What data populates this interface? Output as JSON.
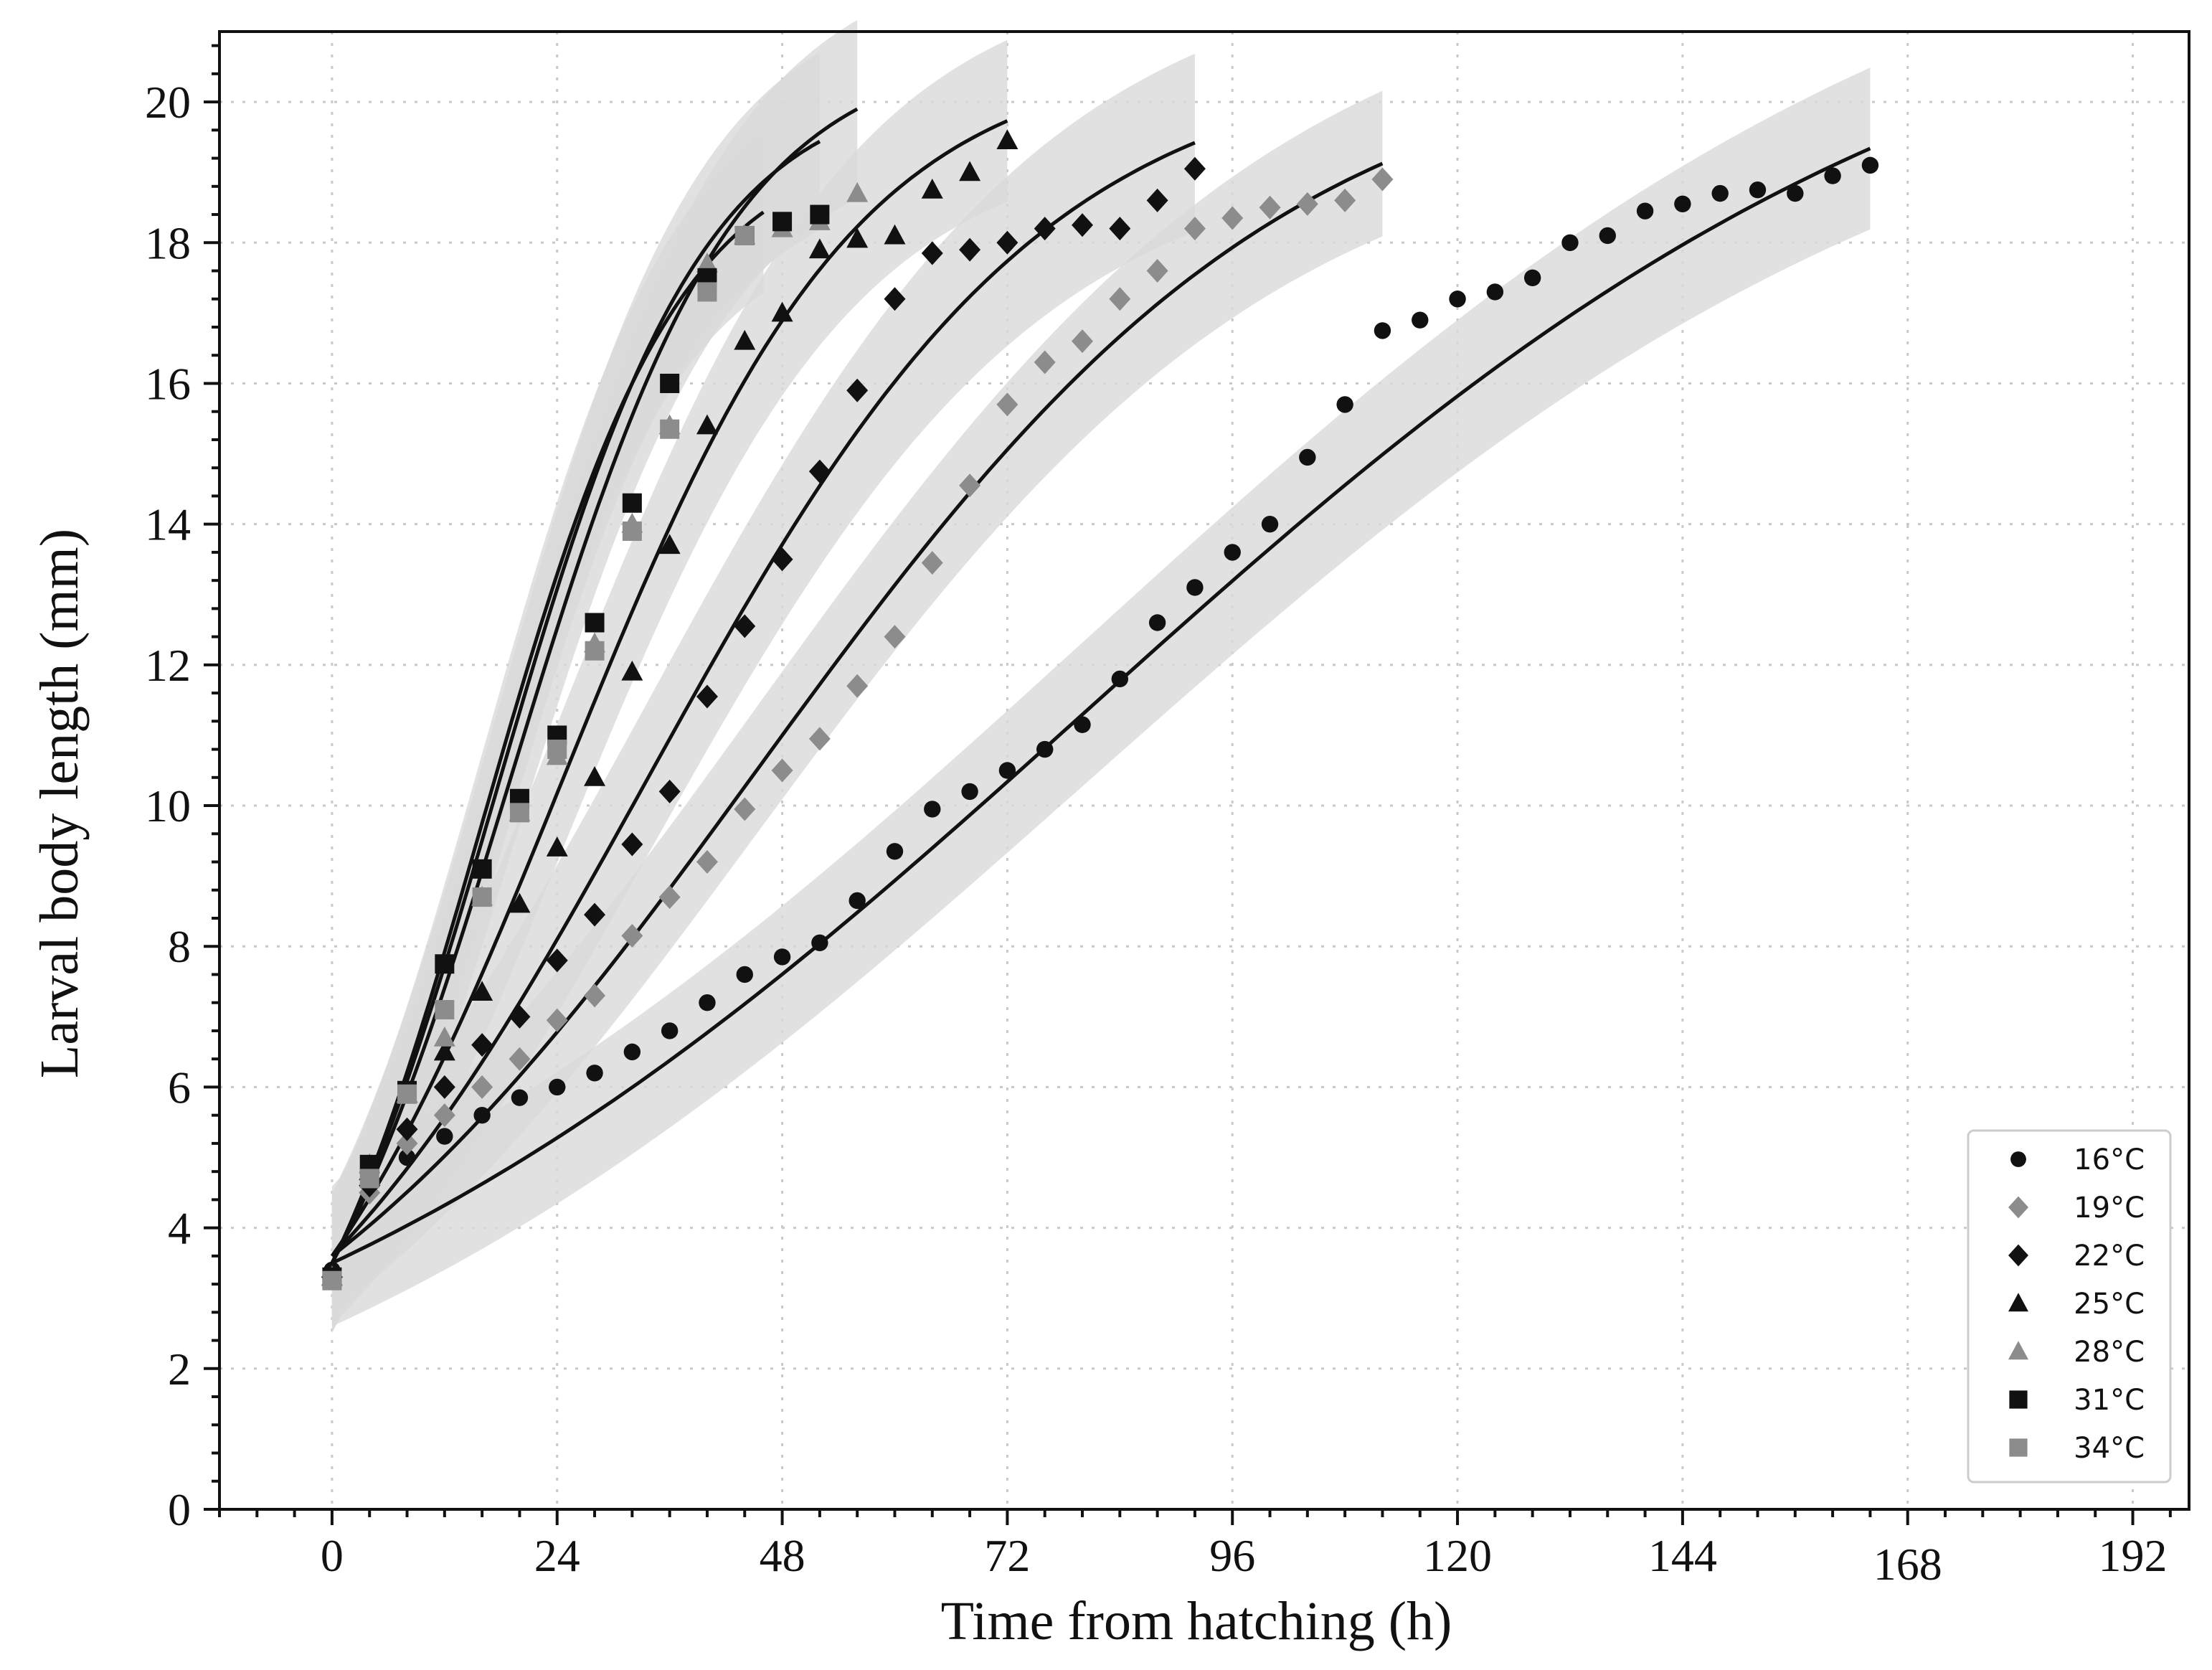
{
  "chart_data": {
    "type": "scatter",
    "title": "",
    "xlabel": "Time from hatching (h)",
    "ylabel": "Larval body length (mm)",
    "xlim": [
      -12,
      198
    ],
    "ylim": [
      0,
      21
    ],
    "x_ticks": [
      0,
      24,
      48,
      72,
      96,
      120,
      144,
      168,
      192
    ],
    "y_ticks": [
      0,
      2,
      4,
      6,
      8,
      10,
      12,
      14,
      16,
      18,
      20
    ],
    "grid": true,
    "legend_position": "bottom-right",
    "colors": {
      "black": "#111111",
      "gray": "#8c8c8c",
      "band": "#d9d9d9",
      "grid": "#c8c8c8"
    },
    "series": [
      {
        "name": "16°C",
        "marker": "circle",
        "color": "#111111",
        "x": [
          0,
          4,
          8,
          12,
          16,
          20,
          24,
          28,
          32,
          36,
          40,
          44,
          48,
          52,
          56,
          60,
          64,
          68,
          72,
          76,
          80,
          84,
          88,
          92,
          96,
          100,
          104,
          108,
          112,
          116,
          120,
          124,
          128,
          132,
          136,
          140,
          144,
          148,
          152,
          156,
          160,
          164
        ],
        "y": [
          3.4,
          4.6,
          5.0,
          5.3,
          5.6,
          5.85,
          6.0,
          6.2,
          6.5,
          6.8,
          7.2,
          7.6,
          7.85,
          8.05,
          8.65,
          9.35,
          9.95,
          10.2,
          10.5,
          10.8,
          11.15,
          11.8,
          12.6,
          13.1,
          13.6,
          14.0,
          14.95,
          15.7,
          16.75,
          16.9,
          17.2,
          17.3,
          17.5,
          18.0,
          18.1,
          18.45,
          18.55,
          18.7,
          18.75,
          18.7,
          18.95,
          19.1
        ],
        "fit": {
          "L0": 3.5,
          "Linf": 22.6,
          "r": 0.0212,
          "xmax": 164,
          "band": 1.0
        }
      },
      {
        "name": "19°C",
        "marker": "diamond",
        "color": "#8c8c8c",
        "x": [
          0,
          4,
          8,
          12,
          16,
          20,
          24,
          28,
          32,
          36,
          40,
          44,
          48,
          52,
          56,
          60,
          64,
          68,
          72,
          76,
          80,
          84,
          88,
          92,
          96,
          100,
          104,
          108,
          112
        ],
        "y": [
          3.3,
          4.5,
          5.2,
          5.6,
          6.0,
          6.4,
          6.95,
          7.3,
          8.15,
          8.7,
          9.2,
          9.95,
          10.5,
          10.95,
          11.7,
          12.4,
          13.45,
          14.55,
          15.7,
          16.3,
          16.6,
          17.2,
          17.6,
          18.2,
          18.35,
          18.5,
          18.55,
          18.6,
          18.9
        ],
        "fit": {
          "L0": 3.6,
          "Linf": 21.0,
          "r": 0.0348,
          "xmax": 112,
          "band": 0.9
        }
      },
      {
        "name": "22°C",
        "marker": "diamond",
        "color": "#111111",
        "x": [
          0,
          4,
          8,
          12,
          16,
          20,
          24,
          28,
          32,
          36,
          40,
          44,
          48,
          52,
          56,
          60,
          64,
          68,
          72,
          76,
          80,
          84,
          88,
          92
        ],
        "y": [
          3.3,
          4.6,
          5.4,
          6.0,
          6.6,
          7.0,
          7.8,
          8.45,
          9.45,
          10.2,
          11.55,
          12.55,
          13.5,
          14.75,
          15.9,
          17.2,
          17.85,
          17.9,
          18.0,
          18.2,
          18.25,
          18.2,
          18.6,
          19.05
        ],
        "fit": {
          "L0": 3.6,
          "Linf": 20.7,
          "r": 0.0465,
          "xmax": 92,
          "band": 1.1
        }
      },
      {
        "name": "25°C",
        "marker": "triangle",
        "color": "#111111",
        "x": [
          0,
          4,
          8,
          12,
          16,
          20,
          24,
          28,
          32,
          36,
          40,
          44,
          48,
          52,
          56,
          60,
          64,
          68,
          72
        ],
        "y": [
          3.3,
          4.8,
          5.9,
          6.5,
          7.35,
          8.6,
          9.4,
          10.4,
          11.9,
          13.7,
          15.4,
          16.6,
          17.0,
          17.9,
          18.05,
          18.1,
          18.75,
          19.0,
          19.45
        ],
        "fit": {
          "L0": 3.6,
          "Linf": 20.7,
          "r": 0.0635,
          "xmax": 72,
          "band": 1.0
        }
      },
      {
        "name": "28°C",
        "marker": "triangle",
        "color": "#8c8c8c",
        "x": [
          0,
          4,
          8,
          12,
          16,
          20,
          24,
          28,
          32,
          36,
          40,
          44,
          48,
          52,
          56
        ],
        "y": [
          3.3,
          4.9,
          5.9,
          6.7,
          8.7,
          9.9,
          10.7,
          12.3,
          14.0,
          15.4,
          17.7,
          18.1,
          18.2,
          18.3,
          18.7
        ],
        "fit": {
          "L0": 3.5,
          "Linf": 20.8,
          "r": 0.0838,
          "xmax": 56,
          "band": 1.1
        }
      },
      {
        "name": "31°C",
        "marker": "square",
        "color": "#111111",
        "x": [
          0,
          4,
          8,
          12,
          16,
          20,
          24,
          28,
          32,
          36,
          40,
          44,
          48,
          52
        ],
        "y": [
          3.3,
          4.9,
          5.95,
          7.75,
          9.1,
          10.1,
          11.0,
          12.6,
          14.3,
          16.0,
          17.5,
          18.1,
          18.3,
          18.4
        ],
        "fit": {
          "L0": 3.5,
          "Linf": 20.3,
          "r": 0.0901,
          "xmax": 52,
          "band": 1.1
        }
      },
      {
        "name": "34°C",
        "marker": "square",
        "color": "#8c8c8c",
        "x": [
          0,
          4,
          8,
          12,
          16,
          20,
          24,
          28,
          32,
          36,
          40,
          44
        ],
        "y": [
          3.25,
          4.7,
          5.9,
          7.1,
          8.7,
          9.9,
          10.8,
          12.2,
          13.9,
          15.35,
          17.3,
          18.1
        ],
        "fit": {
          "L0": 3.5,
          "Linf": 19.5,
          "r": 0.095,
          "xmax": 46,
          "band": 1.0
        }
      }
    ]
  }
}
